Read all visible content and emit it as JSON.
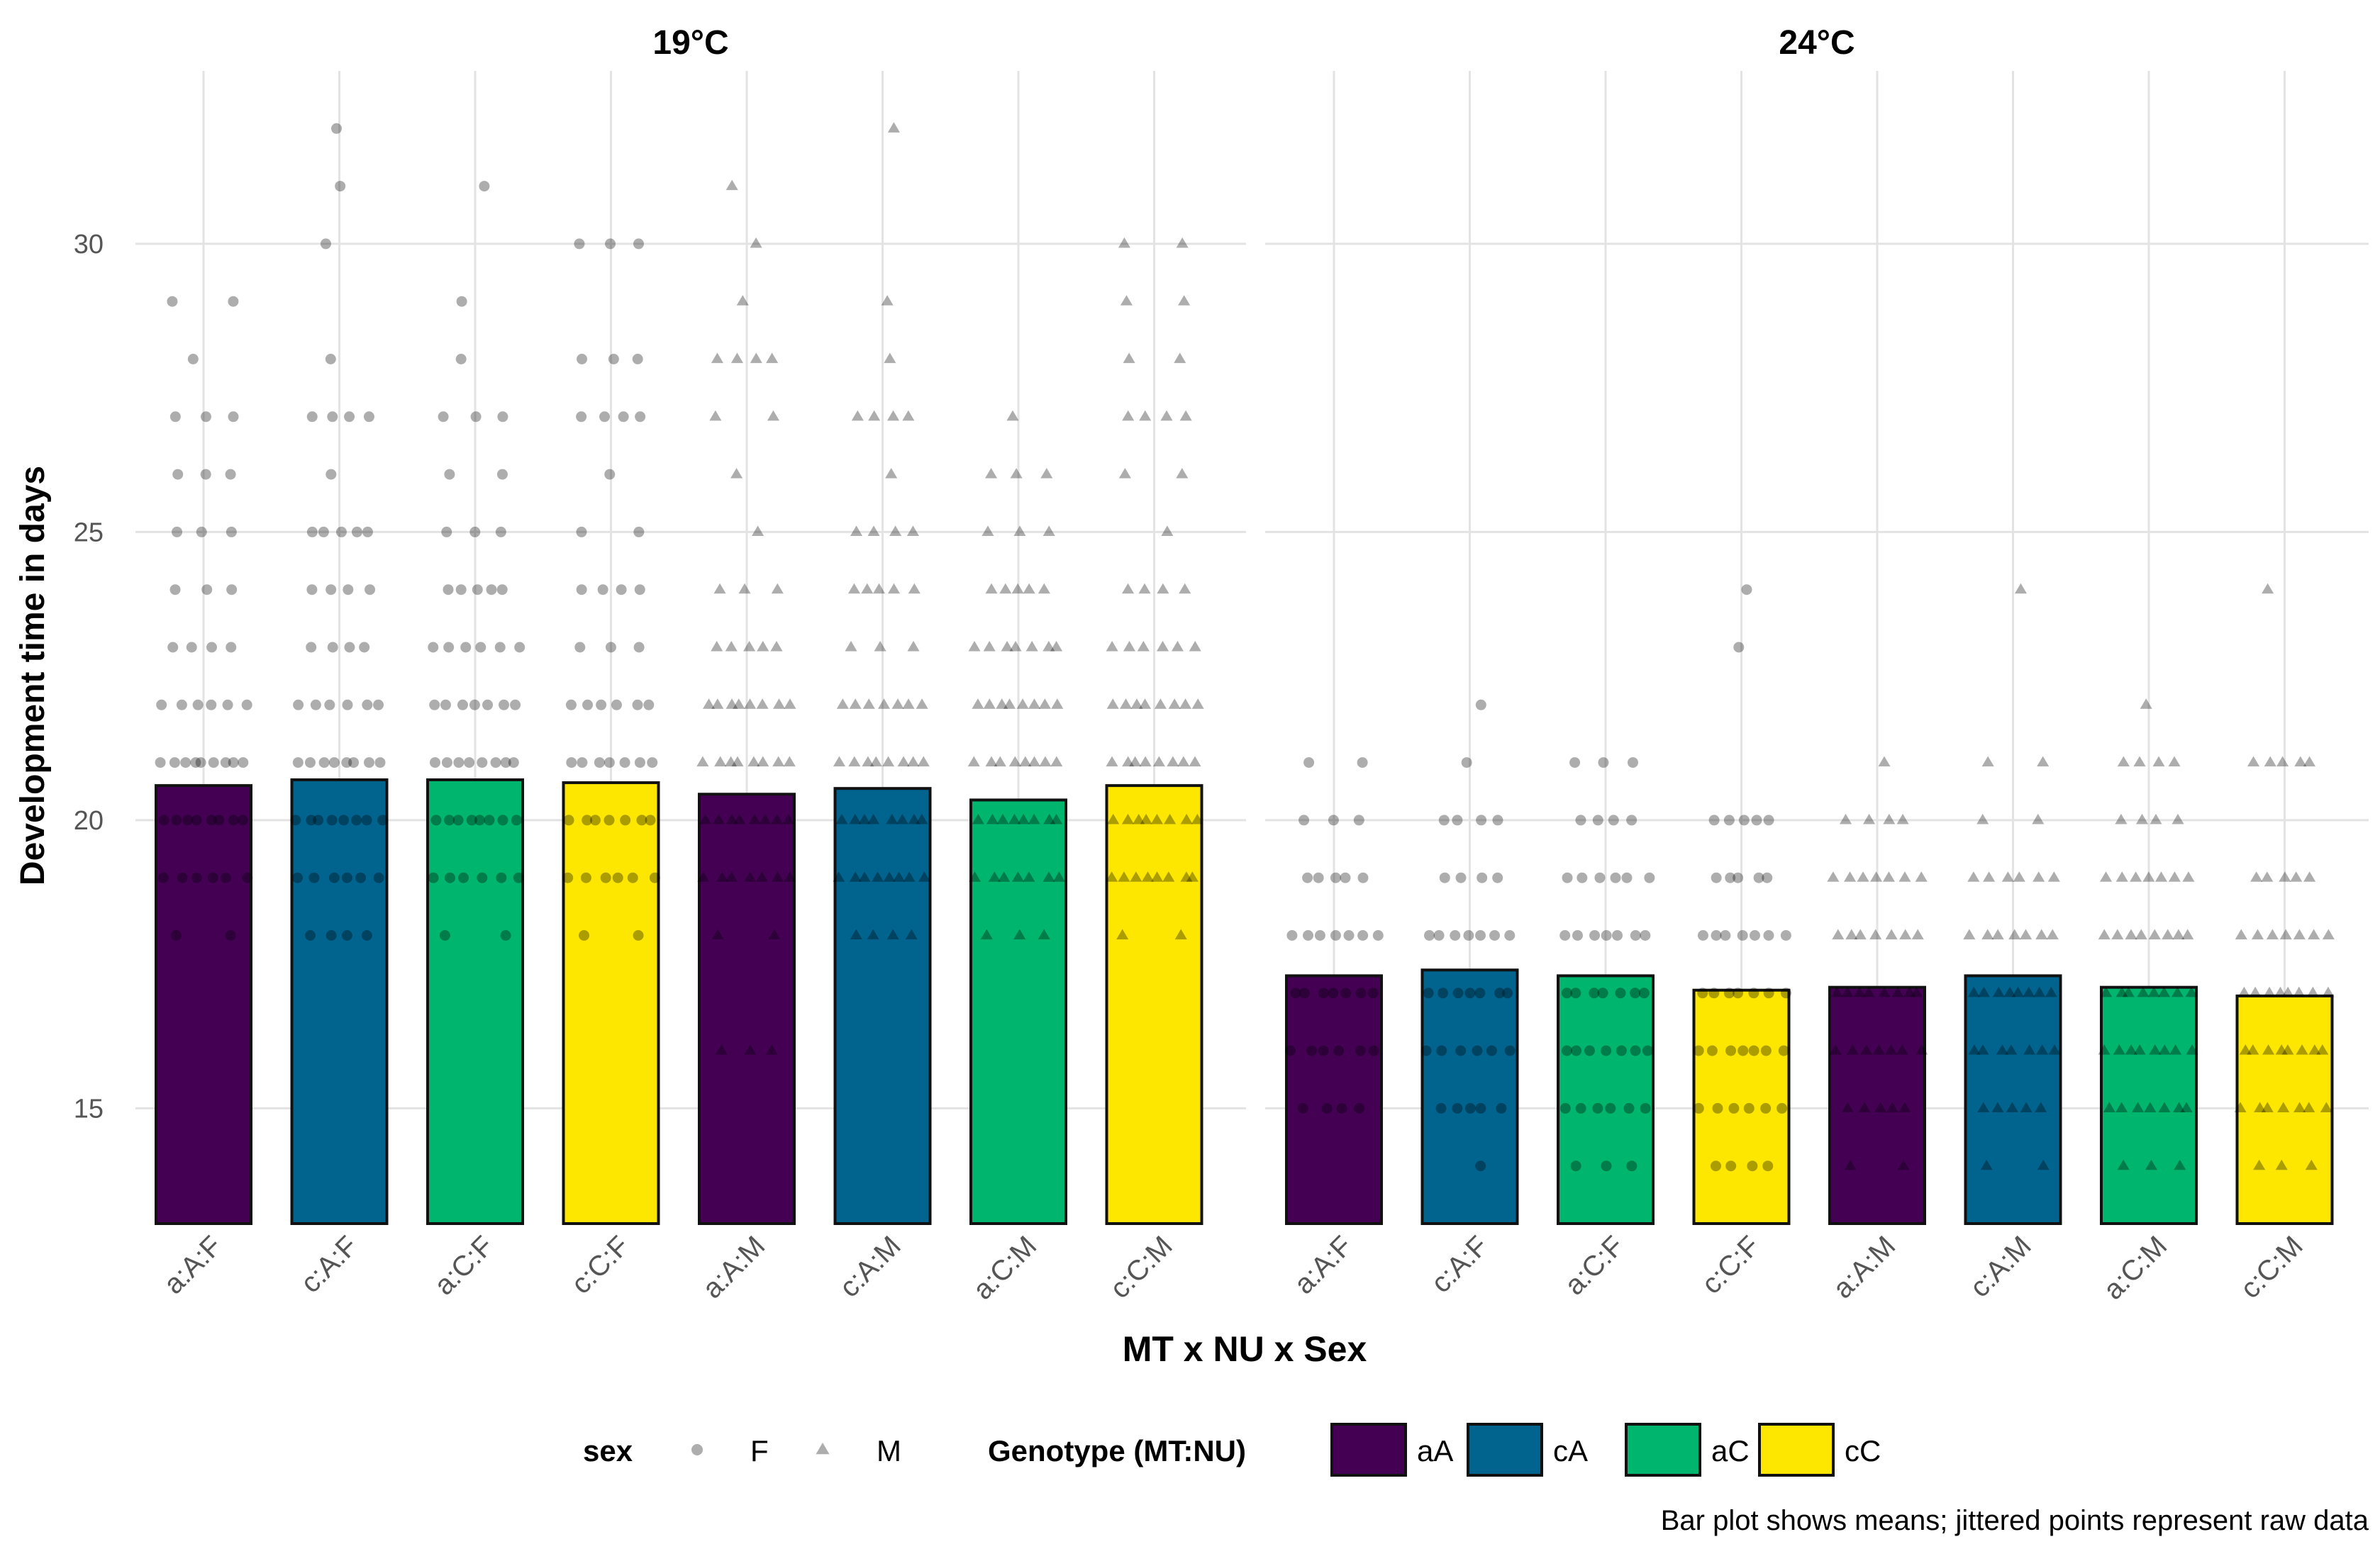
{
  "chart_data": {
    "type": "bar",
    "ylabel": "Development time in days",
    "xlabel": "MT x NU x Sex",
    "caption": "Bar plot shows means; jittered points represent raw data",
    "ylim": [
      13,
      33
    ],
    "yticks": [
      15,
      20,
      25,
      30
    ],
    "grid": true,
    "legend_position": "bottom",
    "categories": [
      "a:A:F",
      "c:A:F",
      "a:C:F",
      "c:C:F",
      "a:A:M",
      "c:A:M",
      "a:C:M",
      "c:C:M"
    ],
    "genotypes": [
      "aA",
      "cA",
      "aC",
      "cC",
      "aA",
      "cA",
      "aC",
      "cC"
    ],
    "sexes": [
      "F",
      "F",
      "F",
      "F",
      "M",
      "M",
      "M",
      "M"
    ],
    "panels": [
      {
        "title": "19°C",
        "means": [
          20.6,
          20.7,
          20.7,
          20.65,
          20.45,
          20.55,
          20.35,
          20.6
        ],
        "points": [
          [
            [
              18,
              2
            ],
            [
              19,
              6
            ],
            [
              20,
              8
            ],
            [
              21,
              9
            ],
            [
              22,
              6
            ],
            [
              23,
              4
            ],
            [
              24,
              3
            ],
            [
              25,
              3
            ],
            [
              26,
              3
            ],
            [
              27,
              3
            ],
            [
              28,
              1
            ],
            [
              29,
              2
            ]
          ],
          [
            [
              18,
              4
            ],
            [
              19,
              6
            ],
            [
              20,
              8
            ],
            [
              21,
              8
            ],
            [
              22,
              6
            ],
            [
              23,
              4
            ],
            [
              24,
              4
            ],
            [
              25,
              5
            ],
            [
              26,
              1
            ],
            [
              27,
              4
            ],
            [
              28,
              1
            ],
            [
              30,
              1
            ],
            [
              31,
              1
            ],
            [
              32,
              1
            ]
          ],
          [
            [
              18,
              2
            ],
            [
              19,
              6
            ],
            [
              20,
              8
            ],
            [
              21,
              8
            ],
            [
              22,
              7
            ],
            [
              23,
              6
            ],
            [
              24,
              5
            ],
            [
              25,
              3
            ],
            [
              26,
              2
            ],
            [
              27,
              3
            ],
            [
              28,
              1
            ],
            [
              29,
              1
            ],
            [
              31,
              1
            ]
          ],
          [
            [
              18,
              2
            ],
            [
              19,
              6
            ],
            [
              20,
              7
            ],
            [
              21,
              7
            ],
            [
              22,
              6
            ],
            [
              23,
              3
            ],
            [
              24,
              4
            ],
            [
              25,
              2
            ],
            [
              26,
              1
            ],
            [
              27,
              4
            ],
            [
              28,
              3
            ],
            [
              30,
              3
            ]
          ],
          [
            [
              16,
              3
            ],
            [
              18,
              2
            ],
            [
              19,
              7
            ],
            [
              20,
              8
            ],
            [
              21,
              8
            ],
            [
              22,
              8
            ],
            [
              23,
              5
            ],
            [
              24,
              3
            ],
            [
              25,
              1
            ],
            [
              26,
              1
            ],
            [
              27,
              2
            ],
            [
              28,
              4
            ],
            [
              29,
              1
            ],
            [
              30,
              1
            ],
            [
              31,
              1
            ]
          ],
          [
            [
              18,
              4
            ],
            [
              19,
              8
            ],
            [
              20,
              8
            ],
            [
              21,
              8
            ],
            [
              22,
              7
            ],
            [
              23,
              3
            ],
            [
              24,
              5
            ],
            [
              25,
              4
            ],
            [
              26,
              1
            ],
            [
              27,
              4
            ],
            [
              28,
              1
            ],
            [
              29,
              1
            ],
            [
              32,
              1
            ]
          ],
          [
            [
              18,
              3
            ],
            [
              19,
              7
            ],
            [
              20,
              8
            ],
            [
              21,
              8
            ],
            [
              22,
              8
            ],
            [
              23,
              7
            ],
            [
              24,
              5
            ],
            [
              25,
              3
            ],
            [
              26,
              3
            ],
            [
              27,
              1
            ]
          ],
          [
            [
              18,
              2
            ],
            [
              19,
              8
            ],
            [
              20,
              8
            ],
            [
              21,
              8
            ],
            [
              22,
              8
            ],
            [
              23,
              6
            ],
            [
              24,
              4
            ],
            [
              25,
              1
            ],
            [
              26,
              2
            ],
            [
              27,
              4
            ],
            [
              28,
              2
            ],
            [
              29,
              2
            ],
            [
              30,
              2
            ]
          ]
        ]
      },
      {
        "title": "24°C",
        "means": [
          17.3,
          17.4,
          17.3,
          17.05,
          17.1,
          17.3,
          17.1,
          16.95
        ],
        "points": [
          [
            [
              15,
              4
            ],
            [
              16,
              6
            ],
            [
              17,
              7
            ],
            [
              18,
              7
            ],
            [
              19,
              5
            ],
            [
              20,
              3
            ],
            [
              21,
              2
            ]
          ],
          [
            [
              14,
              1
            ],
            [
              15,
              5
            ],
            [
              16,
              6
            ],
            [
              17,
              7
            ],
            [
              18,
              7
            ],
            [
              19,
              4
            ],
            [
              20,
              4
            ],
            [
              21,
              1
            ],
            [
              22,
              1
            ]
          ],
          [
            [
              14,
              3
            ],
            [
              15,
              6
            ],
            [
              16,
              7
            ],
            [
              17,
              7
            ],
            [
              18,
              7
            ],
            [
              19,
              6
            ],
            [
              20,
              4
            ],
            [
              21,
              3
            ]
          ],
          [
            [
              14,
              4
            ],
            [
              15,
              6
            ],
            [
              16,
              7
            ],
            [
              17,
              7
            ],
            [
              18,
              7
            ],
            [
              19,
              5
            ],
            [
              20,
              5
            ],
            [
              23,
              1
            ],
            [
              24,
              1
            ]
          ],
          [
            [
              14,
              2
            ],
            [
              15,
              5
            ],
            [
              16,
              7
            ],
            [
              17,
              8
            ],
            [
              18,
              7
            ],
            [
              19,
              7
            ],
            [
              20,
              4
            ],
            [
              21,
              1
            ]
          ],
          [
            [
              14,
              2
            ],
            [
              15,
              5
            ],
            [
              16,
              7
            ],
            [
              17,
              8
            ],
            [
              18,
              7
            ],
            [
              19,
              6
            ],
            [
              20,
              2
            ],
            [
              21,
              2
            ],
            [
              24,
              1
            ]
          ],
          [
            [
              14,
              3
            ],
            [
              15,
              7
            ],
            [
              16,
              8
            ],
            [
              17,
              8
            ],
            [
              18,
              8
            ],
            [
              19,
              7
            ],
            [
              20,
              4
            ],
            [
              21,
              4
            ],
            [
              22,
              1
            ]
          ],
          [
            [
              14,
              3
            ],
            [
              15,
              7
            ],
            [
              16,
              8
            ],
            [
              17,
              8
            ],
            [
              18,
              7
            ],
            [
              19,
              5
            ],
            [
              21,
              5
            ],
            [
              24,
              1
            ]
          ]
        ]
      }
    ],
    "legend": {
      "sex_title": "sex",
      "sex_items": [
        {
          "label": "F",
          "shape": "circle"
        },
        {
          "label": "M",
          "shape": "triangle"
        }
      ],
      "genotype_title": "Genotype (MT:NU)",
      "genotype_items": [
        {
          "label": "aA",
          "color": "#440154"
        },
        {
          "label": "cA",
          "color": "#00648F"
        },
        {
          "label": "aC",
          "color": "#00B56E"
        },
        {
          "label": "cC",
          "color": "#FDE700"
        }
      ]
    }
  }
}
